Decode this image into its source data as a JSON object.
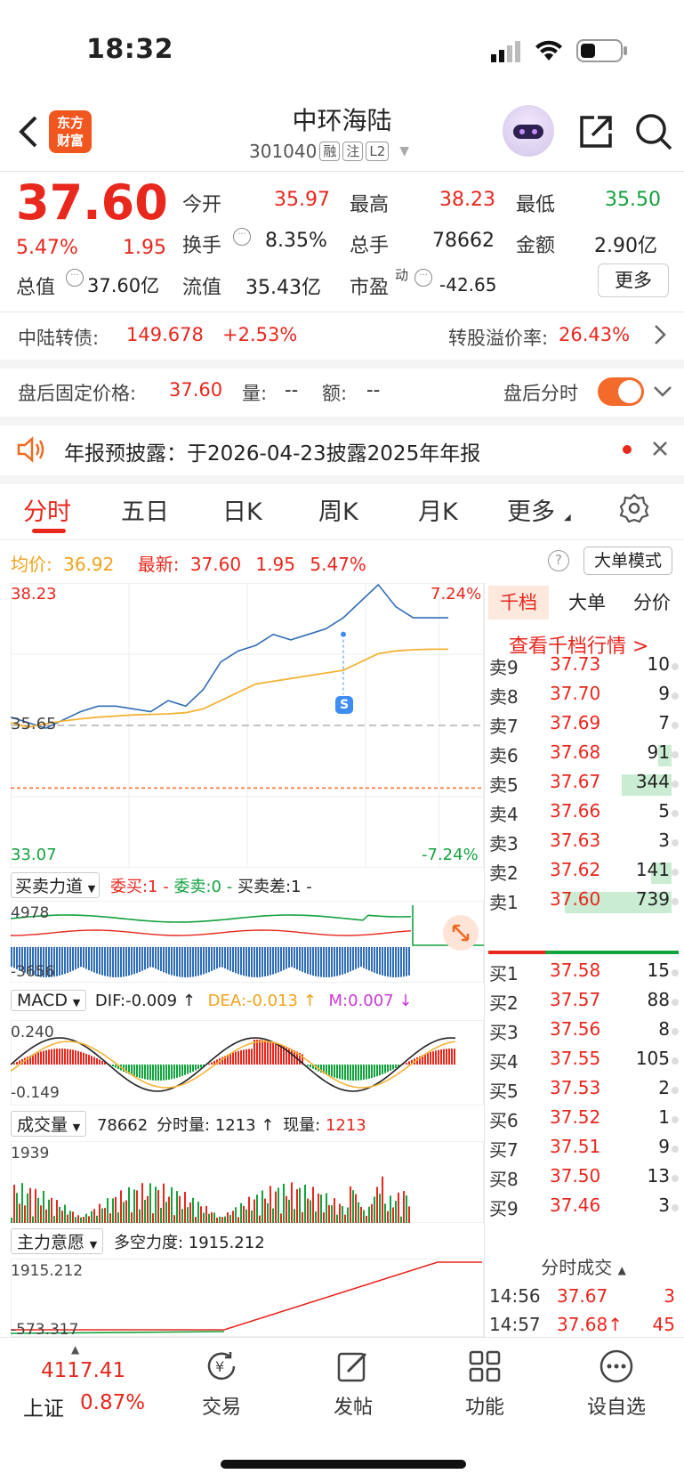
{
  "status": {
    "time": "18:32"
  },
  "header": {
    "logo_line1": "东方",
    "logo_line2": "财富",
    "title": "中环海陆",
    "code": "301040",
    "tags": [
      "融",
      "注",
      "L2"
    ]
  },
  "quote": {
    "price": "37.60",
    "pct": "5.47%",
    "chg": "1.95",
    "open_label": "今开",
    "open": "35.97",
    "high_label": "最高",
    "high": "38.23",
    "low_label": "最低",
    "low": "35.50",
    "turnover_label": "换手",
    "turnover": "8.35%",
    "volume_label": "总手",
    "volume": "78662",
    "amount_label": "金额",
    "amount": "2.90亿",
    "mcap_label": "总值",
    "mcap": "37.60亿",
    "float_label": "流值",
    "float": "35.43亿",
    "pe_label": "市盈",
    "pe_sup": "动",
    "pe": "-42.65",
    "more": "更多"
  },
  "bond": {
    "label": "中陆转债:",
    "price": "149.678",
    "pct": "+2.53%",
    "premium_label": "转股溢价率:",
    "premium": "26.43%"
  },
  "afterhours": {
    "label": "盘后固定价格:",
    "price": "37.60",
    "vol_label": "量:",
    "vol": "--",
    "amt_label": "额:",
    "amt": "--",
    "toggle_label": "盘后分时"
  },
  "notice": {
    "text": "年报预披露：于2026-04-23披露2025年年报"
  },
  "tabs": [
    "分时",
    "五日",
    "日K",
    "周K",
    "月K",
    "更多"
  ],
  "chart_info": {
    "avg_label": "均价:",
    "avg": "36.92",
    "latest_label": "最新:",
    "latest": "37.60",
    "chg": "1.95",
    "pct": "5.47%",
    "mode": "大单模式"
  },
  "chart_data": {
    "type": "line",
    "title": "",
    "ylim": [
      33.07,
      38.23
    ],
    "y_ticks_left": [
      "38.23",
      "35.65",
      "33.07"
    ],
    "y_ticks_right": [
      "7.24%",
      "-7.24%"
    ],
    "series": [
      {
        "name": "",
        "values": [
          35.8,
          35.7,
          35.6,
          35.75,
          35.9,
          36.0,
          36.0,
          35.95,
          35.9,
          36.1,
          36.0,
          36.3,
          36.8,
          37.0,
          37.1,
          37.3,
          37.2,
          37.3,
          37.4,
          37.6,
          37.9,
          38.2,
          37.8,
          37.6,
          37.6,
          37.6
        ]
      },
      {
        "name": "",
        "values": [
          35.7,
          35.62,
          35.68,
          35.73,
          35.77,
          35.8,
          35.82,
          35.84,
          35.85,
          35.86,
          35.88,
          35.95,
          36.1,
          36.25,
          36.4,
          36.45,
          36.5,
          36.55,
          36.6,
          36.65,
          36.8,
          36.95,
          37.0,
          37.02,
          37.03,
          37.03
        ]
      }
    ]
  },
  "panels": {
    "force": {
      "label": "买卖力道",
      "buy": "委买:1",
      "sell": "委卖:0",
      "diff": "买卖差:1",
      "top": "4978",
      "bottom": "-3656"
    },
    "macd": {
      "label": "MACD",
      "dif": "DIF:-0.009 ↑",
      "dea": "DEA:-0.013 ↑",
      "m": "M:0.007 ↓",
      "top": "0.240",
      "bottom": "-0.149"
    },
    "vol": {
      "label": "成交量",
      "total": "78662",
      "minute_label": "分时量:",
      "minute": "1213 ↑",
      "now_label": "现量:",
      "now": "1213",
      "top": "1939"
    },
    "main": {
      "label": "主力意愿",
      "force_label": "多空力度:",
      "force": "1915.212",
      "top": "1915.212",
      "bottom": "-573.317"
    }
  },
  "side": {
    "tabs": [
      "千档",
      "大单",
      "分价"
    ],
    "link": "查看千档行情 >",
    "asks": [
      {
        "label": "卖9",
        "price": "37.73",
        "qty": "10"
      },
      {
        "label": "卖8",
        "price": "37.70",
        "qty": "9"
      },
      {
        "label": "卖7",
        "price": "37.69",
        "qty": "7"
      },
      {
        "label": "卖6",
        "price": "37.68",
        "qty": "91"
      },
      {
        "label": "卖5",
        "price": "37.67",
        "qty": "344"
      },
      {
        "label": "卖4",
        "price": "37.66",
        "qty": "5"
      },
      {
        "label": "卖3",
        "price": "37.63",
        "qty": "3"
      },
      {
        "label": "卖2",
        "price": "37.62",
        "qty": "141"
      },
      {
        "label": "卖1",
        "price": "37.60",
        "qty": "739"
      }
    ],
    "bids": [
      {
        "label": "买1",
        "price": "37.58",
        "qty": "15"
      },
      {
        "label": "买2",
        "price": "37.57",
        "qty": "88"
      },
      {
        "label": "买3",
        "price": "37.56",
        "qty": "8"
      },
      {
        "label": "买4",
        "price": "37.55",
        "qty": "105"
      },
      {
        "label": "买5",
        "price": "37.53",
        "qty": "2"
      },
      {
        "label": "买6",
        "price": "37.52",
        "qty": "1"
      },
      {
        "label": "买7",
        "price": "37.51",
        "qty": "9"
      },
      {
        "label": "买8",
        "price": "37.50",
        "qty": "13"
      },
      {
        "label": "买9",
        "price": "37.46",
        "qty": "3"
      }
    ],
    "trades_title": "分时成交",
    "trades": [
      {
        "time": "14:56",
        "price": "37.67",
        "qty": "3"
      },
      {
        "time": "14:57",
        "price": "37.68↑",
        "qty": "45"
      }
    ]
  },
  "bottom": {
    "index_value": "4117.41",
    "index_name": "上证",
    "index_pct": "0.87%",
    "items": [
      "交易",
      "发帖",
      "功能",
      "设自选"
    ]
  }
}
